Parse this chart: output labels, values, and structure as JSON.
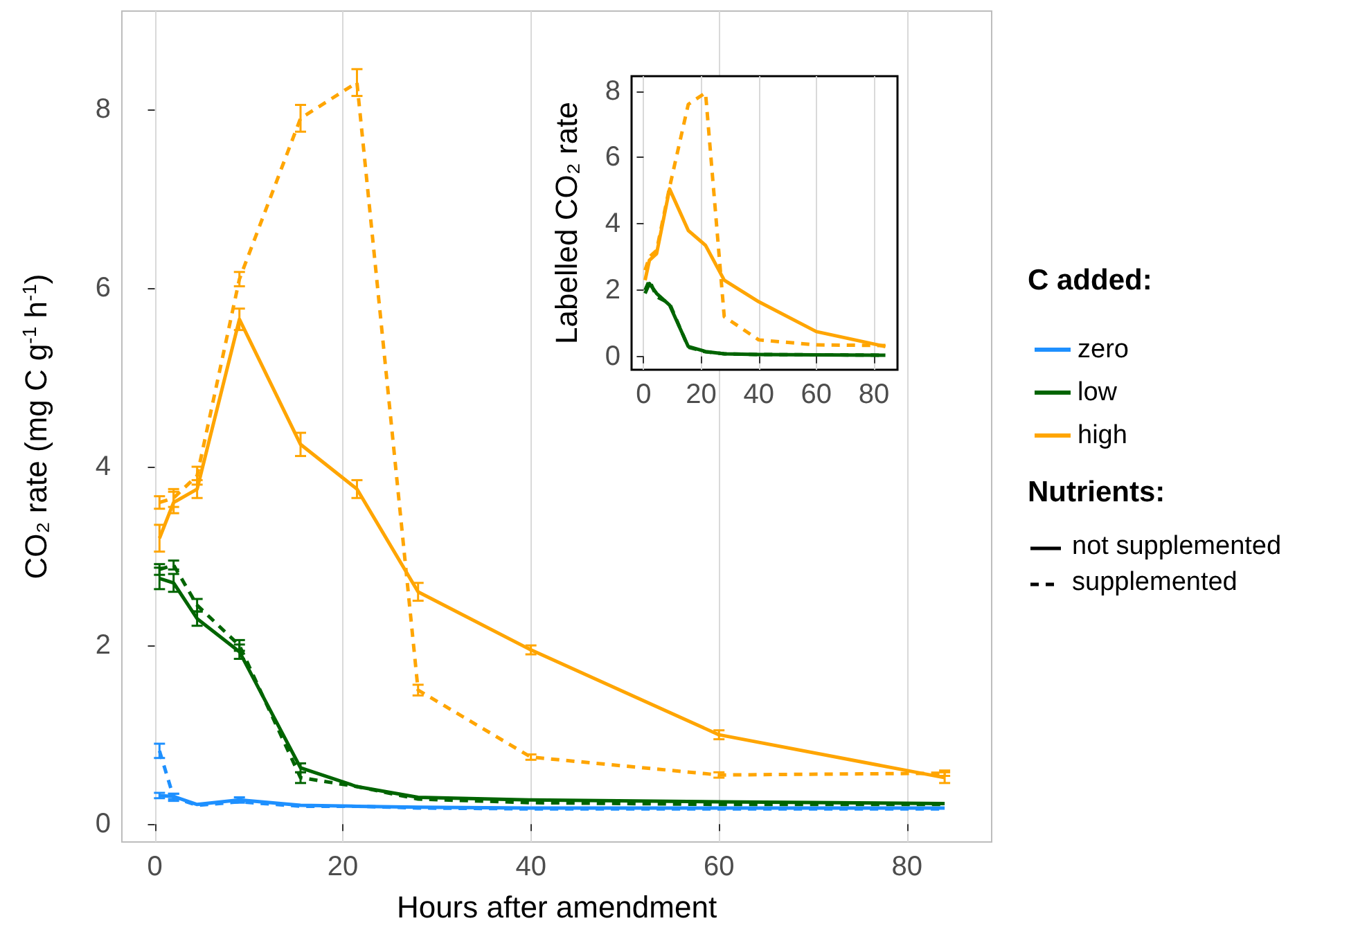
{
  "chart_data": [
    {
      "type": "line",
      "xlabel": "Hours after amendment",
      "ylabel": "CO₂ rate (mg C g$^{-1}$ h$^{-1}$)",
      "legend_title": "C added:",
      "legend": "right",
      "grid": "x",
      "marker": "none",
      "x": [
        0.5,
        2,
        4.5,
        9,
        15.5,
        21.5,
        28,
        40,
        60,
        84
      ],
      "xlim": [
        -3.5,
        89
      ],
      "xticks": [
        0,
        20,
        40,
        60,
        80
      ],
      "ylim": [
        -0.2,
        9.1
      ],
      "yticks": [
        0,
        2,
        4,
        6,
        8
      ],
      "series": [
        {
          "name": "zero",
          "color": "#1e90ff",
          "line_style": "solid",
          "values": [
            0.32,
            0.31,
            0.22,
            0.27,
            0.21,
            0.2,
            0.19,
            0.18,
            0.18,
            0.18
          ],
          "errors": [
            0.03,
            0.03,
            null,
            0.03,
            null,
            null,
            null,
            null,
            null,
            null
          ]
        },
        {
          "color": "#1e90ff",
          "line_style": "dashed",
          "values": [
            0.82,
            0.3,
            0.21,
            0.25,
            0.2,
            0.2,
            0.18,
            0.17,
            0.17,
            0.17
          ],
          "errors": [
            0.08,
            0.04,
            null,
            null,
            null,
            null,
            null,
            null,
            null,
            null
          ]
        },
        {
          "name": "low",
          "color": "#006400",
          "line_style": "solid",
          "values": [
            2.75,
            2.7,
            2.3,
            1.93,
            0.63,
            0.42,
            0.3,
            0.27,
            0.25,
            0.23
          ],
          "errors": [
            0.12,
            0.1,
            0.08,
            0.08,
            0.05,
            null,
            null,
            null,
            null,
            null
          ]
        },
        {
          "color": "#006400",
          "line_style": "dashed",
          "values": [
            2.85,
            2.9,
            2.45,
            2.0,
            0.52,
            0.42,
            0.28,
            0.24,
            0.22,
            0.22
          ],
          "errors": [
            0.06,
            0.05,
            0.07,
            0.06,
            0.06,
            null,
            null,
            null,
            null,
            null
          ]
        },
        {
          "name": "high",
          "color": "#ffa500",
          "line_style": "solid",
          "values": [
            3.2,
            3.6,
            3.75,
            5.65,
            4.25,
            3.75,
            2.6,
            1.95,
            1.0,
            0.52
          ],
          "errors": [
            0.15,
            0.12,
            0.1,
            0.12,
            0.13,
            0.1,
            0.1,
            0.05,
            0.05,
            0.06
          ]
        },
        {
          "color": "#ffa500",
          "line_style": "dashed",
          "values": [
            3.6,
            3.65,
            3.9,
            6.1,
            7.9,
            8.3,
            1.5,
            0.75,
            0.55,
            0.57
          ],
          "errors": [
            0.07,
            0.1,
            0.1,
            0.08,
            0.15,
            0.15,
            0.06,
            0.03,
            0.03,
            0.03
          ]
        }
      ],
      "annotations": [
        "Nutrients:",
        "not supplemented",
        "supplemented"
      ]
    },
    {
      "type": "line",
      "ylabel": "Labelled CO₂ rate",
      "grid": "x",
      "marker": "none",
      "x": [
        0.5,
        2,
        4.5,
        9,
        15.5,
        21.5,
        28,
        40,
        60,
        84
      ],
      "xlim": [
        -4.2,
        88.2
      ],
      "xticks": [
        0,
        20,
        40,
        60,
        80
      ],
      "ylim": [
        -0.4,
        8.45
      ],
      "yticks": [
        0,
        2,
        4,
        6,
        8
      ],
      "series": [
        {
          "color": "#006400",
          "line_style": "solid",
          "values": [
            1.9,
            2.2,
            1.9,
            1.55,
            0.3,
            0.15,
            0.08,
            0.06,
            0.05,
            0.04
          ]
        },
        {
          "color": "#006400",
          "line_style": "dashed",
          "values": [
            2.0,
            2.3,
            1.8,
            1.6,
            0.28,
            0.14,
            0.08,
            0.06,
            0.05,
            0.04
          ]
        },
        {
          "color": "#ffa500",
          "line_style": "solid",
          "values": [
            2.3,
            2.9,
            3.1,
            5.05,
            3.8,
            3.35,
            2.3,
            1.65,
            0.75,
            0.3
          ]
        },
        {
          "color": "#ffa500",
          "line_style": "dashed",
          "values": [
            2.6,
            3.0,
            3.2,
            5.1,
            7.6,
            7.95,
            1.2,
            0.5,
            0.35,
            0.33
          ]
        }
      ]
    }
  ]
}
